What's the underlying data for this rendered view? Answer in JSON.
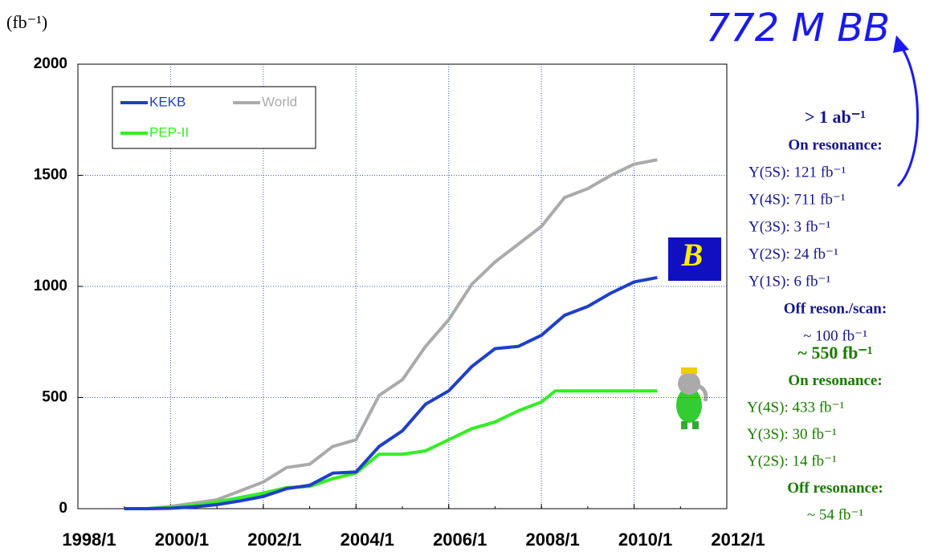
{
  "chart_data": {
    "type": "line",
    "y_unit": "(fb⁻¹)",
    "xlim": [
      1998,
      2012
    ],
    "xticks": [
      {
        "value": 1998,
        "label": "1998/1"
      },
      {
        "value": 2000,
        "label": "2000/1"
      },
      {
        "value": 2002,
        "label": "2002/1"
      },
      {
        "value": 2004,
        "label": "2004/1"
      },
      {
        "value": 2006,
        "label": "2006/1"
      },
      {
        "value": 2008,
        "label": "2008/1"
      },
      {
        "value": 2010,
        "label": "2010/1"
      },
      {
        "value": 2012,
        "label": "2012/1"
      }
    ],
    "ylim": [
      0,
      2000
    ],
    "yticks": [
      0,
      500,
      1000,
      1500,
      2000
    ],
    "grid": true,
    "legend": "upper left",
    "series": [
      {
        "name": "KEKB",
        "color": "#1f3fc8",
        "x": [
          1999,
          1999.5,
          2000,
          2000.5,
          2001,
          2001.5,
          2002,
          2002.5,
          2003,
          2003.5,
          2004,
          2004.5,
          2005,
          2005.5,
          2006,
          2006.5,
          2007,
          2007.5,
          2008,
          2008.5,
          2009,
          2009.5,
          2010,
          2010.5
        ],
        "values": [
          0,
          0,
          2,
          8,
          18,
          35,
          55,
          90,
          105,
          160,
          165,
          280,
          350,
          470,
          530,
          640,
          720,
          730,
          780,
          870,
          910,
          970,
          1020,
          1040
        ]
      },
      {
        "name": "World",
        "color": "#aaaaaa",
        "x": [
          1999,
          1999.5,
          2000,
          2000.5,
          2001,
          2001.5,
          2002,
          2002.5,
          2003,
          2003.5,
          2004,
          2004.5,
          2005,
          2005.5,
          2006,
          2006.5,
          2007,
          2007.5,
          2008,
          2008.5,
          2009,
          2009.5,
          2010,
          2010.5
        ],
        "values": [
          0,
          0,
          10,
          25,
          40,
          80,
          120,
          185,
          200,
          280,
          310,
          510,
          580,
          730,
          850,
          1010,
          1110,
          1190,
          1270,
          1400,
          1440,
          1500,
          1550,
          1570
        ]
      },
      {
        "name": "PEP-II",
        "color": "#33ee22",
        "x": [
          1999.5,
          2000,
          2000.5,
          2001,
          2001.5,
          2002,
          2002.5,
          2003,
          2003.5,
          2004,
          2004.5,
          2005,
          2005.5,
          2006,
          2006.5,
          2007,
          2007.5,
          2008,
          2008.3,
          2010.5
        ],
        "values": [
          0,
          5,
          15,
          30,
          50,
          70,
          95,
          100,
          135,
          160,
          245,
          245,
          260,
          310,
          360,
          390,
          440,
          480,
          530,
          530
        ]
      }
    ],
    "callout": "772 M BB",
    "callout_color": "#1a1aee",
    "belle_summary": {
      "color": "#16168a",
      "lines": [
        "> 1 ab⁻¹",
        "On resonance:",
        "Υ(5S): 121 fb⁻¹",
        "Υ(4S): 711 fb⁻¹",
        "Υ(3S): 3 fb⁻¹",
        "Υ(2S): 24 fb⁻¹",
        "Υ(1S): 6 fb⁻¹",
        "Off reson./scan:",
        "~ 100 fb⁻¹"
      ]
    },
    "babar_summary": {
      "color": "#1a7a00",
      "lines": [
        "~ 550 fb⁻¹",
        "On resonance:",
        "Υ(4S): 433 fb⁻¹",
        "Υ(3S): 30 fb⁻¹",
        "Υ(2S): 14 fb⁻¹",
        "Off resonance:",
        "~ 54 fb⁻¹"
      ]
    }
  }
}
